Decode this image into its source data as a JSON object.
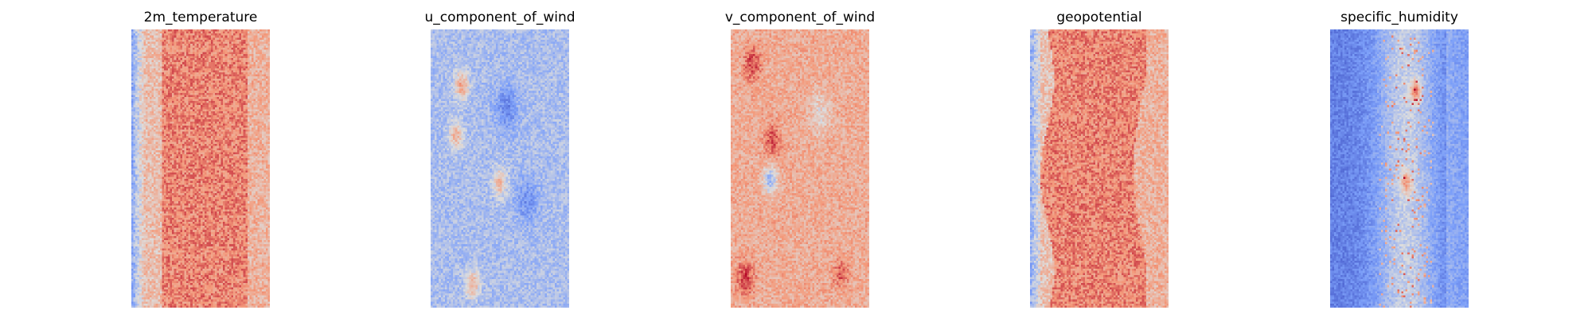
{
  "chart_data": [
    {
      "type": "heatmap",
      "title": "2m_temperature",
      "xlabel": "",
      "ylabel": "",
      "colormap": "coolwarm",
      "axes_visible": false,
      "grid": false,
      "field": "warm interior band (~0.8) with cooler strip along the left edge (~0.3), noisy"
    },
    {
      "type": "heatmap",
      "title": "u_component_of_wind",
      "xlabel": "",
      "ylabel": "",
      "colormap": "coolwarm",
      "axes_visible": false,
      "grid": false,
      "field": "mostly cool (~0.35) with scattered warm streaks near the left and cool blobs"
    },
    {
      "type": "heatmap",
      "title": "v_component_of_wind",
      "xlabel": "",
      "ylabel": "",
      "colormap": "coolwarm",
      "axes_visible": false,
      "grid": false,
      "field": "mostly warm (~0.68) with scattered hot and cool patches"
    },
    {
      "type": "heatmap",
      "title": "geopotential",
      "xlabel": "",
      "ylabel": "",
      "colormap": "coolwarm",
      "axes_visible": false,
      "grid": false,
      "field": "warm band with wavy edges (~0.78), cooler left edge (~0.35), noisy"
    },
    {
      "type": "heatmap",
      "title": "specific_humidity",
      "xlabel": "",
      "ylabel": "",
      "colormap": "coolwarm",
      "axes_visible": false,
      "grid": false,
      "field": "cool field (~0.18) with lighter central column (~0.45) and warm speckles"
    }
  ]
}
